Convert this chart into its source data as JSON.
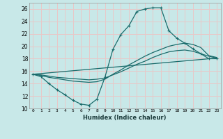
{
  "xlabel": "Humidex (Indice chaleur)",
  "xlim": [
    -0.5,
    23.5
  ],
  "ylim": [
    10,
    27
  ],
  "yticks": [
    10,
    12,
    14,
    16,
    18,
    20,
    22,
    24,
    26
  ],
  "xticks": [
    0,
    1,
    2,
    3,
    4,
    5,
    6,
    7,
    8,
    9,
    10,
    11,
    12,
    13,
    14,
    15,
    16,
    17,
    18,
    19,
    20,
    21,
    22,
    23
  ],
  "bg_color": "#c8e8e8",
  "grid_color": "#e8c8c8",
  "line_color": "#1a6b6b",
  "lines": [
    {
      "x": [
        0,
        1,
        2,
        3,
        4,
        5,
        6,
        7,
        8,
        9,
        10,
        11,
        12,
        13,
        14,
        15,
        16,
        17,
        18,
        19,
        20,
        21,
        22,
        23
      ],
      "y": [
        15.5,
        15.1,
        14.0,
        13.0,
        12.2,
        11.3,
        10.7,
        10.5,
        11.5,
        15.0,
        19.5,
        21.9,
        23.3,
        25.6,
        26.0,
        26.2,
        26.2,
        22.5,
        21.3,
        20.5,
        19.6,
        18.8,
        18.0,
        18.0
      ],
      "marker": true
    },
    {
      "x": [
        0,
        1,
        2,
        3,
        4,
        5,
        6,
        7,
        8,
        9,
        10,
        11,
        12,
        13,
        14,
        15,
        16,
        17,
        18,
        19,
        20,
        21,
        22,
        23
      ],
      "y": [
        15.5,
        15.3,
        15.0,
        14.8,
        14.6,
        14.4,
        14.3,
        14.2,
        14.3,
        14.7,
        15.5,
        16.2,
        17.0,
        17.7,
        18.4,
        19.0,
        19.5,
        20.0,
        20.3,
        20.5,
        20.3,
        19.8,
        18.5,
        18.2
      ],
      "marker": false
    },
    {
      "x": [
        0,
        1,
        2,
        3,
        4,
        5,
        6,
        7,
        8,
        9,
        10,
        11,
        12,
        13,
        14,
        15,
        16,
        17,
        18,
        19,
        20,
        21,
        22,
        23
      ],
      "y": [
        15.5,
        15.4,
        15.2,
        15.0,
        14.9,
        14.8,
        14.7,
        14.6,
        14.7,
        14.9,
        15.4,
        15.9,
        16.5,
        17.1,
        17.6,
        18.2,
        18.7,
        19.1,
        19.3,
        19.4,
        19.2,
        18.8,
        18.4,
        18.1
      ],
      "marker": false
    },
    {
      "x": [
        0,
        23
      ],
      "y": [
        15.5,
        18.1
      ],
      "marker": false
    }
  ]
}
